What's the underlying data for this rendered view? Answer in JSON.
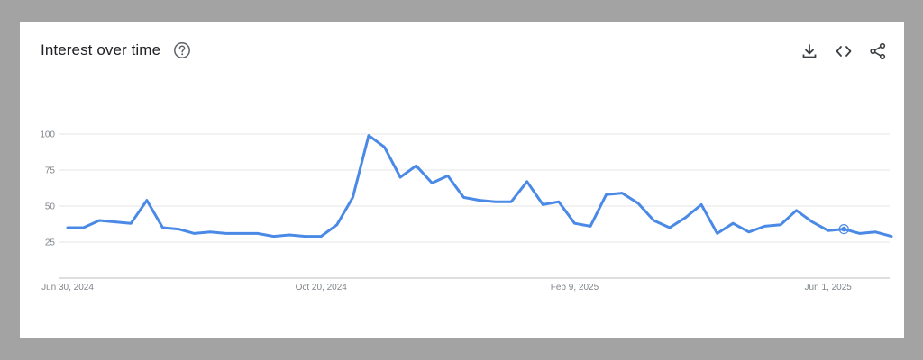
{
  "header": {
    "title": "Interest over time",
    "help_icon": "help-circle-icon",
    "actions": [
      {
        "name": "download-icon"
      },
      {
        "name": "embed-code-icon"
      },
      {
        "name": "share-icon"
      }
    ]
  },
  "colors": {
    "line": "#4a8ae6",
    "grid": "#e6e6e6",
    "axis": "#bdbdbd",
    "tick_text": "#80868b"
  },
  "chart_data": {
    "type": "line",
    "title": "Interest over time",
    "ylim": [
      0,
      100
    ],
    "y_ticks": [
      25,
      50,
      75,
      100
    ],
    "x_tick_labels": [
      "Jun 30, 2024",
      "Oct 20, 2024",
      "Feb 9, 2025",
      "Jun 1, 2025"
    ],
    "x_tick_indices": [
      0,
      16,
      32,
      48
    ],
    "grid": true,
    "series": [
      {
        "values": [
          35,
          35,
          40,
          39,
          38,
          54,
          35,
          34,
          31,
          32,
          31,
          31,
          31,
          29,
          30,
          29,
          29,
          37,
          56,
          99,
          91,
          70,
          78,
          66,
          71,
          56,
          54,
          53,
          53,
          67,
          51,
          53,
          38,
          36,
          58,
          59,
          52,
          40,
          35,
          42,
          51,
          31,
          38,
          32,
          36,
          37,
          47,
          39,
          33,
          34,
          31,
          32,
          29
        ]
      }
    ],
    "highlight_index": 49
  }
}
